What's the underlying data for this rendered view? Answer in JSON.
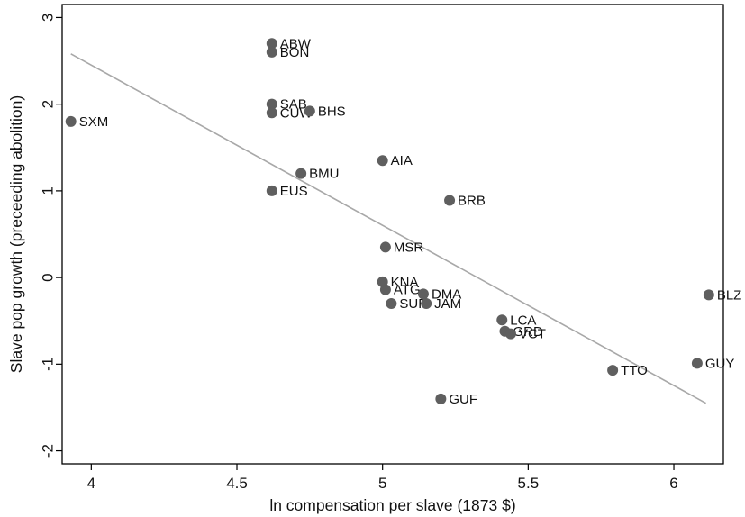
{
  "chart_data": {
    "type": "scatter",
    "title": "",
    "xlabel": "ln compensation per slave (1873 $)",
    "ylabel": "Slave pop growth (preceeding abolition)",
    "xlim": [
      3.9,
      6.17
    ],
    "ylim": [
      -2.15,
      3.15
    ],
    "xticks": [
      {
        "value": 4,
        "label": "4"
      },
      {
        "value": 4.5,
        "label": "4.5"
      },
      {
        "value": 5,
        "label": "5"
      },
      {
        "value": 5.5,
        "label": "5.5"
      },
      {
        "value": 6,
        "label": "6"
      }
    ],
    "yticks": [
      {
        "value": 3,
        "label": "3"
      },
      {
        "value": 2,
        "label": "2"
      },
      {
        "value": 1,
        "label": "1"
      },
      {
        "value": 0,
        "label": "0"
      },
      {
        "value": -1,
        "label": "-1"
      },
      {
        "value": -2,
        "label": "-2"
      }
    ],
    "grid": false,
    "marker_color": "#5f5f5f",
    "fit_line_color": "#a8a8a8",
    "points": [
      {
        "label": "SXM",
        "x": 3.93,
        "y": 1.8
      },
      {
        "label": "ABW",
        "x": 4.62,
        "y": 2.7
      },
      {
        "label": "BON",
        "x": 4.62,
        "y": 2.6
      },
      {
        "label": "SAB",
        "x": 4.62,
        "y": 2.0
      },
      {
        "label": "CUW",
        "x": 4.62,
        "y": 1.9
      },
      {
        "label": "BHS",
        "x": 4.75,
        "y": 1.92
      },
      {
        "label": "BMU",
        "x": 4.72,
        "y": 1.2
      },
      {
        "label": "EUS",
        "x": 4.62,
        "y": 1.0
      },
      {
        "label": "AIA",
        "x": 5.0,
        "y": 1.35
      },
      {
        "label": "BRB",
        "x": 5.23,
        "y": 0.89
      },
      {
        "label": "MSR",
        "x": 5.01,
        "y": 0.35
      },
      {
        "label": "KNA",
        "x": 5.0,
        "y": -0.05
      },
      {
        "label": "ATG",
        "x": 5.01,
        "y": -0.14
      },
      {
        "label": "DMA",
        "x": 5.14,
        "y": -0.19
      },
      {
        "label": "SUR",
        "x": 5.03,
        "y": -0.3
      },
      {
        "label": "JAM",
        "x": 5.15,
        "y": -0.3
      },
      {
        "label": "LCA",
        "x": 5.41,
        "y": -0.49
      },
      {
        "label": "GRD",
        "x": 5.42,
        "y": -0.62
      },
      {
        "label": "VCT",
        "x": 5.44,
        "y": -0.65
      },
      {
        "label": "TTO",
        "x": 5.79,
        "y": -1.07
      },
      {
        "label": "GUY",
        "x": 6.08,
        "y": -0.99
      },
      {
        "label": "BLZ",
        "x": 6.12,
        "y": -0.2
      },
      {
        "label": "GUF",
        "x": 5.2,
        "y": -1.4
      }
    ],
    "fit_line": {
      "x": [
        3.93,
        6.11
      ],
      "y": [
        2.58,
        -1.45
      ]
    }
  }
}
